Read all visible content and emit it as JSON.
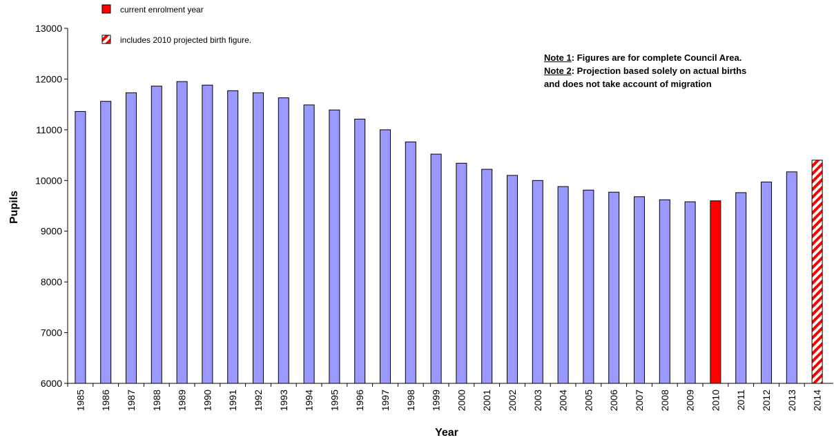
{
  "chart_data": {
    "type": "bar",
    "xlabel": "Year",
    "ylabel": "Pupils",
    "ylim": [
      6000,
      13000
    ],
    "yticks": [
      6000,
      7000,
      8000,
      9000,
      10000,
      11000,
      12000,
      13000
    ],
    "grid": false,
    "categories": [
      "1985",
      "1986",
      "1987",
      "1988",
      "1989",
      "1990",
      "1991",
      "1992",
      "1993",
      "1994",
      "1995",
      "1996",
      "1997",
      "1998",
      "1999",
      "2000",
      "2001",
      "2002",
      "2003",
      "2004",
      "2005",
      "2006",
      "2007",
      "2008",
      "2009",
      "2010",
      "2011",
      "2012",
      "2013",
      "2014"
    ],
    "values": [
      11360,
      11560,
      11730,
      11860,
      11950,
      11880,
      11770,
      11730,
      11630,
      11490,
      11390,
      11210,
      11000,
      10760,
      10520,
      10340,
      10220,
      10100,
      10000,
      9880,
      9810,
      9770,
      9680,
      9620,
      9580,
      9600,
      9760,
      9970,
      10170,
      10400
    ],
    "bar_styles": [
      "normal",
      "normal",
      "normal",
      "normal",
      "normal",
      "normal",
      "normal",
      "normal",
      "normal",
      "normal",
      "normal",
      "normal",
      "normal",
      "normal",
      "normal",
      "normal",
      "normal",
      "normal",
      "normal",
      "normal",
      "normal",
      "normal",
      "normal",
      "normal",
      "normal",
      "current",
      "normal",
      "normal",
      "normal",
      "hatched"
    ],
    "colors": {
      "normal": "#9999ff",
      "current": "#ff0000",
      "hatch": "#ff0000",
      "outline": "#000000"
    },
    "legend": {
      "placement": "top-left",
      "items": [
        {
          "style": "current",
          "label": "current enrolment year"
        },
        {
          "style": "hatched",
          "label": "includes 2010 projected birth figure."
        }
      ]
    },
    "notes": [
      {
        "key": "Note 1",
        "text": ": Figures are for complete Council Area."
      },
      {
        "key": "Note 2",
        "text": ": Projection based solely on actual births"
      },
      {
        "key": "",
        "text": "and does not take account of migration"
      }
    ]
  }
}
